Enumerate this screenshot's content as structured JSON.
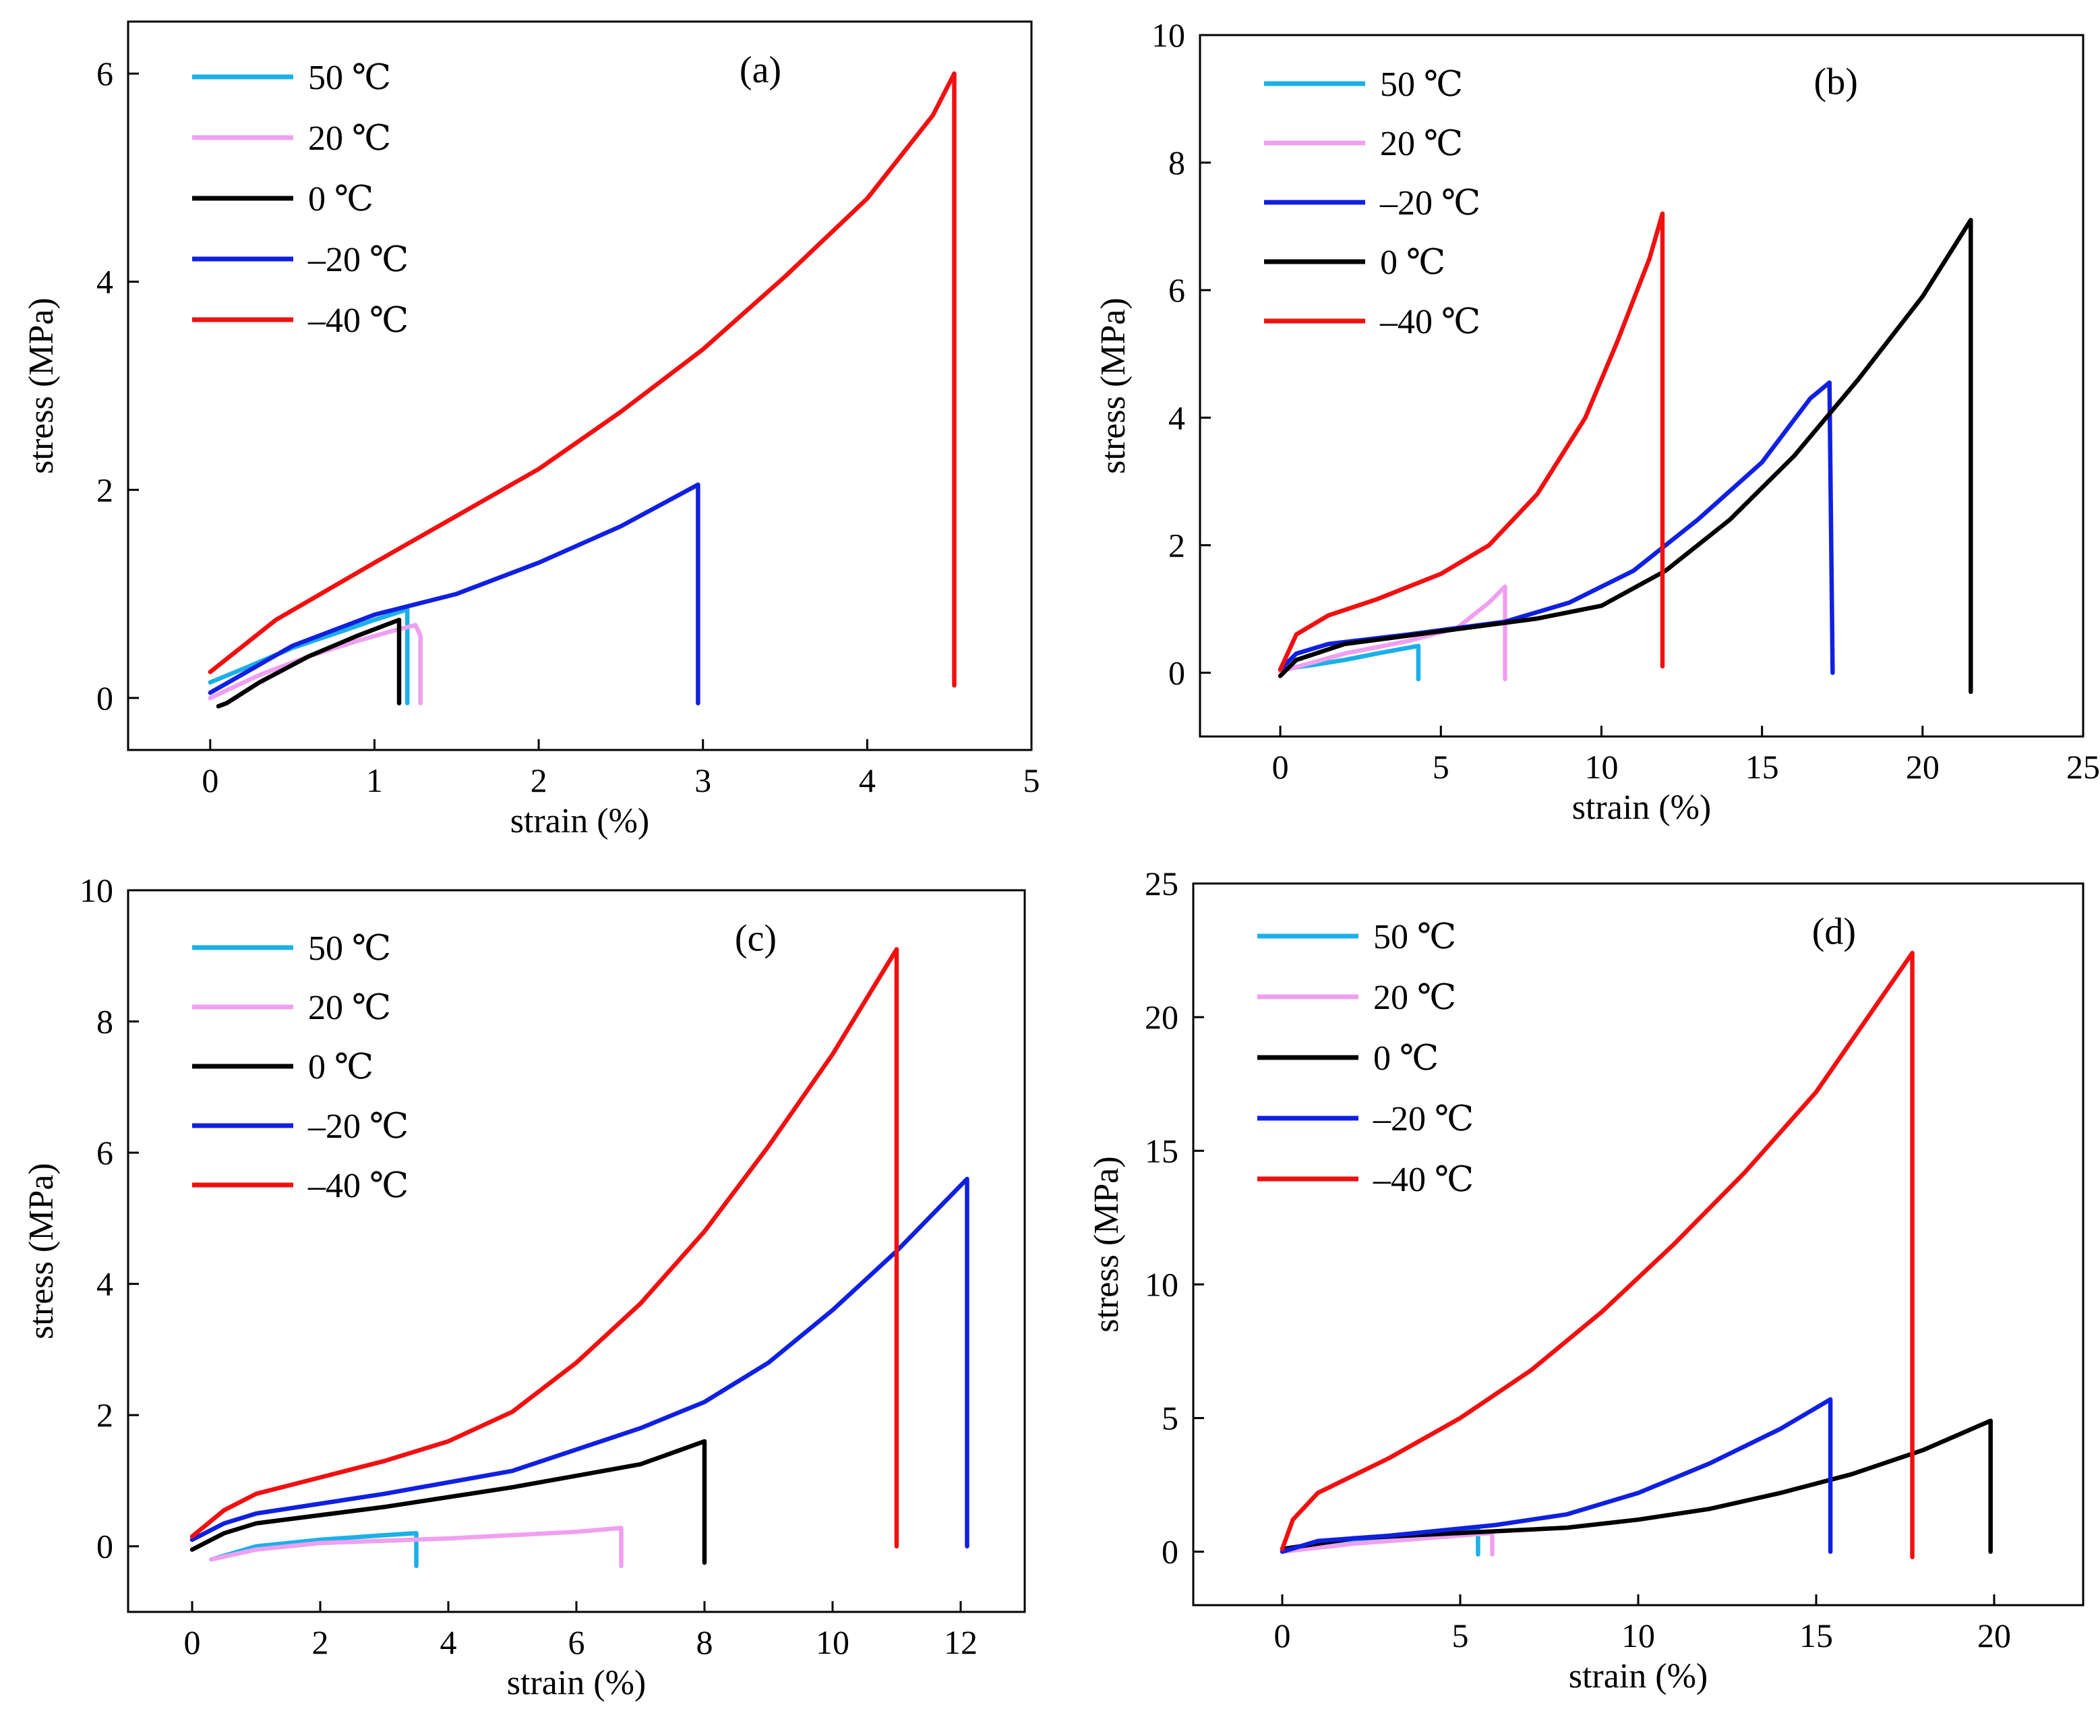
{
  "colors": {
    "c50": "#1ab0e8",
    "c20": "#f0a0f0",
    "c0": "#000000",
    "cm20": "#1020e0",
    "cm40": "#f01010"
  },
  "chart_data": [
    {
      "id": "a",
      "type": "line",
      "tag": "(a)",
      "xlabel": "strain (%)",
      "ylabel": "stress (MPa)",
      "xlim": [
        -0.5,
        5
      ],
      "ylim": [
        -0.5,
        6.5
      ],
      "xticks": [
        "0",
        "1",
        "2",
        "3",
        "4",
        "5"
      ],
      "yticks": [
        "0",
        "2",
        "4",
        "6"
      ],
      "legend": [
        "50 ℃",
        "20 ℃",
        "0 ℃",
        "–20 ℃",
        "–40 ℃"
      ],
      "legend_colors": [
        "c50",
        "c20",
        "c0",
        "cm20",
        "cm40"
      ],
      "series": [
        {
          "name": "50 ℃",
          "color": "c50",
          "points": [
            [
              0,
              0.15
            ],
            [
              0.2,
              0.28
            ],
            [
              0.5,
              0.48
            ],
            [
              0.8,
              0.64
            ],
            [
              1.0,
              0.75
            ],
            [
              1.2,
              0.85
            ],
            [
              1.2,
              -0.05
            ]
          ]
        },
        {
          "name": "20 ℃",
          "color": "c20",
          "points": [
            [
              0,
              0.0
            ],
            [
              0.3,
              0.22
            ],
            [
              0.6,
              0.4
            ],
            [
              0.9,
              0.55
            ],
            [
              1.1,
              0.64
            ],
            [
              1.25,
              0.7
            ],
            [
              1.28,
              0.6
            ],
            [
              1.28,
              -0.05
            ]
          ]
        },
        {
          "name": "0 ℃",
          "color": "c0",
          "points": [
            [
              0.05,
              -0.08
            ],
            [
              0.1,
              -0.05
            ],
            [
              0.3,
              0.15
            ],
            [
              0.6,
              0.4
            ],
            [
              0.9,
              0.6
            ],
            [
              1.15,
              0.75
            ],
            [
              1.15,
              -0.05
            ]
          ]
        },
        {
          "name": "–20 ℃",
          "color": "cm20",
          "points": [
            [
              0,
              0.05
            ],
            [
              0.5,
              0.5
            ],
            [
              1.0,
              0.8
            ],
            [
              1.5,
              1.0
            ],
            [
              2.0,
              1.3
            ],
            [
              2.5,
              1.65
            ],
            [
              2.97,
              2.05
            ],
            [
              2.97,
              -0.05
            ]
          ]
        },
        {
          "name": "–40 ℃",
          "color": "cm40",
          "points": [
            [
              0,
              0.25
            ],
            [
              0.4,
              0.75
            ],
            [
              1.0,
              1.3
            ],
            [
              1.5,
              1.75
            ],
            [
              2.0,
              2.2
            ],
            [
              2.5,
              2.75
            ],
            [
              3.0,
              3.35
            ],
            [
              3.5,
              4.05
            ],
            [
              4.0,
              4.8
            ],
            [
              4.4,
              5.6
            ],
            [
              4.53,
              6.0
            ],
            [
              4.53,
              0.12
            ]
          ]
        }
      ]
    },
    {
      "id": "b",
      "type": "line",
      "tag": "(b)",
      "xlabel": "strain (%)",
      "ylabel": "stress (MPa)",
      "xlim": [
        -2.5,
        25
      ],
      "ylim": [
        -1,
        10
      ],
      "xticks": [
        "0",
        "5",
        "10",
        "15",
        "20",
        "25"
      ],
      "yticks": [
        "0",
        "2",
        "4",
        "6",
        "8",
        "10"
      ],
      "legend": [
        "50 ℃",
        "20 ℃",
        "–20 ℃",
        "0 ℃",
        "–40 ℃"
      ],
      "legend_colors": [
        "c50",
        "c20",
        "cm20",
        "c0",
        "cm40"
      ],
      "series": [
        {
          "name": "50 ℃",
          "color": "c50",
          "points": [
            [
              0,
              0.05
            ],
            [
              1,
              0.12
            ],
            [
              2,
              0.2
            ],
            [
              3,
              0.3
            ],
            [
              4.3,
              0.42
            ],
            [
              4.3,
              -0.1
            ]
          ]
        },
        {
          "name": "20 ℃",
          "color": "c20",
          "points": [
            [
              0,
              0.02
            ],
            [
              2,
              0.3
            ],
            [
              4,
              0.5
            ],
            [
              5.5,
              0.7
            ],
            [
              6.5,
              1.1
            ],
            [
              7.0,
              1.35
            ],
            [
              7.0,
              -0.1
            ]
          ]
        },
        {
          "name": "–20 ℃",
          "color": "cm20",
          "points": [
            [
              0,
              0.05
            ],
            [
              0.5,
              0.3
            ],
            [
              1.5,
              0.45
            ],
            [
              4,
              0.6
            ],
            [
              7,
              0.8
            ],
            [
              9,
              1.1
            ],
            [
              11,
              1.6
            ],
            [
              13,
              2.4
            ],
            [
              15,
              3.3
            ],
            [
              16.5,
              4.3
            ],
            [
              17.1,
              4.55
            ],
            [
              17.2,
              0.0
            ]
          ]
        },
        {
          "name": "0 ℃",
          "color": "c0",
          "points": [
            [
              0,
              -0.05
            ],
            [
              0.5,
              0.2
            ],
            [
              2,
              0.45
            ],
            [
              5,
              0.65
            ],
            [
              8,
              0.85
            ],
            [
              10,
              1.05
            ],
            [
              12,
              1.6
            ],
            [
              14,
              2.4
            ],
            [
              16,
              3.4
            ],
            [
              18,
              4.6
            ],
            [
              20,
              5.9
            ],
            [
              21.5,
              7.1
            ],
            [
              21.5,
              -0.3
            ]
          ]
        },
        {
          "name": "–40 ℃",
          "color": "cm40",
          "points": [
            [
              0,
              0.05
            ],
            [
              0.5,
              0.6
            ],
            [
              1.5,
              0.9
            ],
            [
              3,
              1.15
            ],
            [
              5,
              1.55
            ],
            [
              6.5,
              2.0
            ],
            [
              8,
              2.8
            ],
            [
              9.5,
              4.0
            ],
            [
              10.5,
              5.2
            ],
            [
              11.5,
              6.5
            ],
            [
              11.9,
              7.2
            ],
            [
              11.9,
              0.1
            ]
          ]
        }
      ]
    },
    {
      "id": "c",
      "type": "line",
      "tag": "(c)",
      "xlabel": "strain (%)",
      "ylabel": "stress (MPa)",
      "xlim": [
        -1,
        13
      ],
      "ylim": [
        -1,
        10
      ],
      "xticks": [
        "0",
        "2",
        "4",
        "6",
        "8",
        "10",
        "12"
      ],
      "yticks": [
        "0",
        "2",
        "4",
        "6",
        "8",
        "10"
      ],
      "legend": [
        "50 ℃",
        "20 ℃",
        "0 ℃",
        "–20 ℃",
        "–40 ℃"
      ],
      "legend_colors": [
        "c50",
        "c20",
        "c0",
        "cm20",
        "cm40"
      ],
      "series": [
        {
          "name": "50 ℃",
          "color": "c50",
          "points": [
            [
              0.3,
              -0.2
            ],
            [
              1,
              0.0
            ],
            [
              2,
              0.1
            ],
            [
              3,
              0.17
            ],
            [
              3.5,
              0.2
            ],
            [
              3.5,
              -0.3
            ]
          ]
        },
        {
          "name": "20 ℃",
          "color": "c20",
          "points": [
            [
              0.3,
              -0.2
            ],
            [
              1,
              -0.05
            ],
            [
              2,
              0.05
            ],
            [
              4,
              0.12
            ],
            [
              6,
              0.22
            ],
            [
              6.7,
              0.28
            ],
            [
              6.7,
              -0.3
            ]
          ]
        },
        {
          "name": "0 ℃",
          "color": "c0",
          "points": [
            [
              0,
              -0.05
            ],
            [
              0.5,
              0.2
            ],
            [
              1,
              0.35
            ],
            [
              3,
              0.6
            ],
            [
              5,
              0.9
            ],
            [
              7,
              1.25
            ],
            [
              8.0,
              1.6
            ],
            [
              8.0,
              -0.25
            ]
          ]
        },
        {
          "name": "–20 ℃",
          "color": "cm20",
          "points": [
            [
              0,
              0.1
            ],
            [
              0.5,
              0.35
            ],
            [
              1,
              0.5
            ],
            [
              3,
              0.8
            ],
            [
              5,
              1.15
            ],
            [
              7,
              1.8
            ],
            [
              8,
              2.2
            ],
            [
              9,
              2.8
            ],
            [
              10,
              3.6
            ],
            [
              11,
              4.5
            ],
            [
              12.1,
              5.6
            ],
            [
              12.1,
              0.0
            ]
          ]
        },
        {
          "name": "–40 ℃",
          "color": "cm40",
          "points": [
            [
              0,
              0.15
            ],
            [
              0.5,
              0.55
            ],
            [
              1,
              0.8
            ],
            [
              2,
              1.05
            ],
            [
              3,
              1.3
            ],
            [
              4,
              1.6
            ],
            [
              5,
              2.05
            ],
            [
              6,
              2.8
            ],
            [
              7,
              3.7
            ],
            [
              8,
              4.8
            ],
            [
              9,
              6.1
            ],
            [
              10,
              7.5
            ],
            [
              11.0,
              9.1
            ],
            [
              11.0,
              0.0
            ]
          ]
        }
      ]
    },
    {
      "id": "d",
      "type": "line",
      "tag": "(d)",
      "xlabel": "strain (%)",
      "ylabel": "stress (MPa)",
      "xlim": [
        -2.5,
        22.5
      ],
      "ylim": [
        -2,
        25
      ],
      "xticks": [
        "0",
        "5",
        "10",
        "15",
        "20"
      ],
      "yticks": [
        "0",
        "5",
        "10",
        "15",
        "20",
        "25"
      ],
      "legend": [
        "50 ℃",
        "20 ℃",
        "0 ℃",
        "–20 ℃",
        "–40 ℃"
      ],
      "legend_colors": [
        "c50",
        "c20",
        "c0",
        "cm20",
        "cm40"
      ],
      "series": [
        {
          "name": "50 ℃",
          "color": "c50",
          "points": [
            [
              0,
              0.1
            ],
            [
              2,
              0.4
            ],
            [
              4,
              0.65
            ],
            [
              5.5,
              0.85
            ],
            [
              5.5,
              -0.1
            ]
          ]
        },
        {
          "name": "20 ℃",
          "color": "c20",
          "points": [
            [
              0,
              0.0
            ],
            [
              2,
              0.3
            ],
            [
              4,
              0.5
            ],
            [
              5.9,
              0.7
            ],
            [
              5.9,
              -0.1
            ]
          ]
        },
        {
          "name": "0 ℃",
          "color": "c0",
          "points": [
            [
              0,
              0.1
            ],
            [
              2,
              0.5
            ],
            [
              5,
              0.7
            ],
            [
              8,
              0.9
            ],
            [
              10,
              1.2
            ],
            [
              12,
              1.6
            ],
            [
              14,
              2.2
            ],
            [
              16,
              2.9
            ],
            [
              18,
              3.8
            ],
            [
              19.9,
              4.9
            ],
            [
              19.9,
              0.0
            ]
          ]
        },
        {
          "name": "–20 ℃",
          "color": "cm20",
          "points": [
            [
              0,
              0.0
            ],
            [
              1,
              0.4
            ],
            [
              3,
              0.6
            ],
            [
              6,
              1.0
            ],
            [
              8,
              1.4
            ],
            [
              10,
              2.2
            ],
            [
              12,
              3.3
            ],
            [
              14,
              4.6
            ],
            [
              15.4,
              5.7
            ],
            [
              15.4,
              0.0
            ]
          ]
        },
        {
          "name": "–40 ℃",
          "color": "cm40",
          "points": [
            [
              0,
              0.1
            ],
            [
              0.3,
              1.2
            ],
            [
              1,
              2.2
            ],
            [
              3,
              3.5
            ],
            [
              5,
              5.0
            ],
            [
              7,
              6.8
            ],
            [
              9,
              9.0
            ],
            [
              11,
              11.5
            ],
            [
              13,
              14.2
            ],
            [
              15,
              17.2
            ],
            [
              17.7,
              22.4
            ],
            [
              17.7,
              -0.2
            ]
          ]
        }
      ]
    }
  ]
}
